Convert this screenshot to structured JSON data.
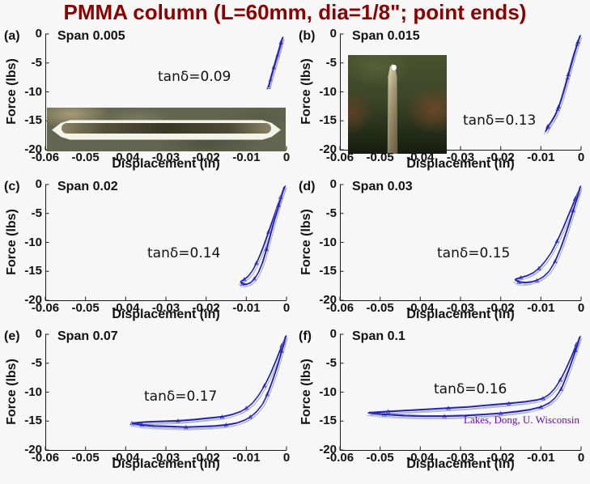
{
  "title": {
    "text": "PMMA column (L=60mm, dia=1/8\"; point ends)"
  },
  "credit": {
    "text": "Lakes, Dong, U. Wisconsin"
  },
  "colors": {
    "title": "#8b0000",
    "credit": "#6a0dad",
    "curve_main": "#1515b5",
    "curve_alt": "#3d3dc4",
    "curve_ghost1": "#a0a5b4",
    "curve_ghost2": "#b9bdcc",
    "axis": "#1a1a1a",
    "background": "#f7f7f7"
  },
  "chart_data": {
    "type": "line",
    "xlabel": "Displacement (in)",
    "ylabel": "Force (lbs)",
    "xlim": [
      -0.06,
      0
    ],
    "ylim": [
      -20,
      0
    ],
    "xticks": [
      -0.06,
      -0.05,
      -0.04,
      -0.03,
      -0.02,
      -0.01,
      0
    ],
    "xtick_labels": [
      "-0.06",
      "-0.05",
      "-0.04",
      "-0.03",
      "-0.02",
      "-0.01",
      "0"
    ],
    "yticks": [
      0,
      -5,
      -10,
      -15,
      -20
    ],
    "ytick_labels": [
      "0",
      "-5",
      "-10",
      "-15",
      "-20"
    ],
    "grid": false,
    "panels": [
      {
        "panel": "(a)",
        "span_label": "Span 0.005",
        "span": 0.005,
        "tand_label": "tanδ=0.09",
        "tan_delta": 0.09,
        "series": [
          {
            "name": "loading",
            "points": [
              [
                -0.0045,
                -9.2
              ],
              [
                -0.004,
                -7.9
              ],
              [
                -0.0034,
                -6.4
              ],
              [
                -0.0028,
                -5.0
              ],
              [
                -0.0022,
                -3.6
              ],
              [
                -0.0016,
                -2.2
              ],
              [
                -0.001,
                -0.6
              ]
            ]
          },
          {
            "name": "unloading",
            "points": [
              [
                -0.001,
                -0.6
              ],
              [
                -0.0014,
                -1.5
              ],
              [
                -0.002,
                -2.9
              ],
              [
                -0.0026,
                -4.3
              ],
              [
                -0.0032,
                -5.8
              ],
              [
                -0.0038,
                -7.2
              ],
              [
                -0.0043,
                -8.6
              ],
              [
                -0.0045,
                -9.2
              ]
            ]
          }
        ]
      },
      {
        "panel": "(b)",
        "span_label": "Span 0.015",
        "span": 0.015,
        "tand_label": "tanδ=0.13",
        "tan_delta": 0.13,
        "series": [
          {
            "name": "loading",
            "points": [
              [
                -0.0089,
                -16.9
              ],
              [
                -0.0083,
                -16.2
              ],
              [
                -0.0075,
                -15.3
              ],
              [
                -0.0066,
                -14.3
              ],
              [
                -0.0058,
                -13.0
              ],
              [
                -0.005,
                -11.4
              ],
              [
                -0.0042,
                -9.6
              ],
              [
                -0.0034,
                -7.6
              ],
              [
                -0.0026,
                -5.6
              ],
              [
                -0.0018,
                -3.6
              ],
              [
                -0.001,
                -1.8
              ],
              [
                -0.0003,
                -0.3
              ]
            ]
          },
          {
            "name": "unloading",
            "points": [
              [
                -0.0003,
                -0.3
              ],
              [
                -0.0008,
                -1.4
              ],
              [
                -0.0016,
                -3.0
              ],
              [
                -0.0024,
                -4.9
              ],
              [
                -0.0032,
                -7.0
              ],
              [
                -0.004,
                -9.0
              ],
              [
                -0.0048,
                -10.9
              ],
              [
                -0.0056,
                -12.6
              ],
              [
                -0.0065,
                -14.0
              ],
              [
                -0.0074,
                -15.1
              ],
              [
                -0.0083,
                -16.0
              ],
              [
                -0.0089,
                -16.9
              ]
            ]
          }
        ]
      },
      {
        "panel": "(c)",
        "span_label": "Span 0.02",
        "span": 0.02,
        "tand_label": "tanδ=0.14",
        "tan_delta": 0.14,
        "series": [
          {
            "name": "loading",
            "points": [
              [
                -0.0006,
                -0.4
              ],
              [
                -0.0015,
                -2.2
              ],
              [
                -0.0025,
                -4.2
              ],
              [
                -0.0035,
                -6.2
              ],
              [
                -0.0045,
                -8.2
              ],
              [
                -0.0055,
                -10.2
              ],
              [
                -0.0065,
                -12.0
              ],
              [
                -0.0075,
                -13.6
              ],
              [
                -0.0085,
                -14.9
              ],
              [
                -0.0095,
                -15.8
              ],
              [
                -0.0105,
                -16.4
              ],
              [
                -0.0115,
                -16.8
              ]
            ]
          },
          {
            "name": "unloading",
            "points": [
              [
                -0.0115,
                -16.8
              ],
              [
                -0.011,
                -17.2
              ],
              [
                -0.01,
                -17.3
              ],
              [
                -0.009,
                -17.0
              ],
              [
                -0.008,
                -16.3
              ],
              [
                -0.007,
                -15.2
              ],
              [
                -0.006,
                -13.5
              ],
              [
                -0.005,
                -11.2
              ],
              [
                -0.004,
                -8.6
              ],
              [
                -0.003,
                -6.0
              ],
              [
                -0.002,
                -3.6
              ],
              [
                -0.001,
                -1.4
              ],
              [
                -0.0004,
                -0.3
              ]
            ]
          }
        ]
      },
      {
        "panel": "(d)",
        "span_label": "Span 0.03",
        "span": 0.03,
        "tand_label": "tanδ=0.15",
        "tan_delta": 0.15,
        "series": [
          {
            "name": "loading",
            "points": [
              [
                -0.0003,
                -0.5
              ],
              [
                -0.0015,
                -2.5
              ],
              [
                -0.003,
                -5.0
              ],
              [
                -0.0045,
                -7.5
              ],
              [
                -0.006,
                -9.8
              ],
              [
                -0.0075,
                -11.8
              ],
              [
                -0.009,
                -13.3
              ],
              [
                -0.0105,
                -14.5
              ],
              [
                -0.012,
                -15.3
              ],
              [
                -0.0135,
                -15.8
              ],
              [
                -0.015,
                -16.1
              ],
              [
                -0.0165,
                -16.4
              ]
            ]
          },
          {
            "name": "unloading",
            "points": [
              [
                -0.0165,
                -16.4
              ],
              [
                -0.0155,
                -16.9
              ],
              [
                -0.014,
                -17.0
              ],
              [
                -0.0125,
                -16.9
              ],
              [
                -0.011,
                -16.6
              ],
              [
                -0.0095,
                -16.0
              ],
              [
                -0.008,
                -15.0
              ],
              [
                -0.0065,
                -13.3
              ],
              [
                -0.005,
                -10.8
              ],
              [
                -0.0035,
                -7.8
              ],
              [
                -0.002,
                -4.5
              ],
              [
                -0.0008,
                -1.8
              ],
              [
                -0.0002,
                -0.3
              ]
            ]
          }
        ]
      },
      {
        "panel": "(e)",
        "span_label": "Span 0.07",
        "span": 0.07,
        "tand_label": "tanδ=0.17",
        "tan_delta": 0.17,
        "series": [
          {
            "name": "loading",
            "points": [
              [
                -0.0002,
                -0.3
              ],
              [
                -0.0012,
                -2.0
              ],
              [
                -0.0025,
                -4.3
              ],
              [
                -0.004,
                -6.8
              ],
              [
                -0.0055,
                -8.9
              ],
              [
                -0.007,
                -10.6
              ],
              [
                -0.0085,
                -11.9
              ],
              [
                -0.01,
                -12.8
              ],
              [
                -0.0115,
                -13.4
              ],
              [
                -0.0135,
                -13.9
              ],
              [
                -0.016,
                -14.3
              ],
              [
                -0.019,
                -14.5
              ],
              [
                -0.023,
                -14.8
              ],
              [
                -0.027,
                -15.0
              ],
              [
                -0.031,
                -15.1
              ],
              [
                -0.035,
                -15.2
              ],
              [
                -0.0385,
                -15.4
              ]
            ]
          },
          {
            "name": "unloading",
            "points": [
              [
                -0.0385,
                -15.4
              ],
              [
                -0.036,
                -15.7
              ],
              [
                -0.033,
                -15.9
              ],
              [
                -0.029,
                -16.0
              ],
              [
                -0.025,
                -16.1
              ],
              [
                -0.021,
                -16.0
              ],
              [
                -0.018,
                -15.9
              ],
              [
                -0.015,
                -15.7
              ],
              [
                -0.0125,
                -15.4
              ],
              [
                -0.0105,
                -14.9
              ],
              [
                -0.009,
                -14.3
              ],
              [
                -0.0075,
                -13.4
              ],
              [
                -0.006,
                -12.1
              ],
              [
                -0.0048,
                -10.4
              ],
              [
                -0.0036,
                -8.2
              ],
              [
                -0.0024,
                -5.7
              ],
              [
                -0.0012,
                -2.9
              ],
              [
                -0.0002,
                -0.3
              ]
            ]
          }
        ]
      },
      {
        "panel": "(f)",
        "span_label": "Span 0.1",
        "span": 0.1,
        "tand_label": "tanδ=0.16",
        "tan_delta": 0.16,
        "series": [
          {
            "name": "loading",
            "points": [
              [
                -0.0003,
                -0.4
              ],
              [
                -0.0012,
                -1.8
              ],
              [
                -0.0024,
                -3.8
              ],
              [
                -0.0038,
                -6.0
              ],
              [
                -0.0052,
                -7.9
              ],
              [
                -0.0066,
                -9.4
              ],
              [
                -0.008,
                -10.4
              ],
              [
                -0.0095,
                -11.1
              ],
              [
                -0.011,
                -11.4
              ],
              [
                -0.014,
                -11.7
              ],
              [
                -0.018,
                -12.0
              ],
              [
                -0.023,
                -12.3
              ],
              [
                -0.028,
                -12.6
              ],
              [
                -0.033,
                -12.8
              ],
              [
                -0.038,
                -13.0
              ],
              [
                -0.043,
                -13.2
              ],
              [
                -0.048,
                -13.4
              ],
              [
                -0.053,
                -13.6
              ]
            ]
          },
          {
            "name": "unloading",
            "points": [
              [
                -0.053,
                -13.6
              ],
              [
                -0.049,
                -13.9
              ],
              [
                -0.044,
                -14.1
              ],
              [
                -0.039,
                -14.2
              ],
              [
                -0.034,
                -14.2
              ],
              [
                -0.029,
                -14.1
              ],
              [
                -0.024,
                -13.9
              ],
              [
                -0.02,
                -13.7
              ],
              [
                -0.016,
                -13.4
              ],
              [
                -0.013,
                -13.1
              ],
              [
                -0.01,
                -12.6
              ],
              [
                -0.008,
                -11.9
              ],
              [
                -0.0065,
                -11.0
              ],
              [
                -0.005,
                -9.5
              ],
              [
                -0.0038,
                -7.5
              ],
              [
                -0.0026,
                -5.2
              ],
              [
                -0.0014,
                -2.8
              ],
              [
                -0.0003,
                -0.4
              ]
            ]
          }
        ]
      }
    ]
  }
}
